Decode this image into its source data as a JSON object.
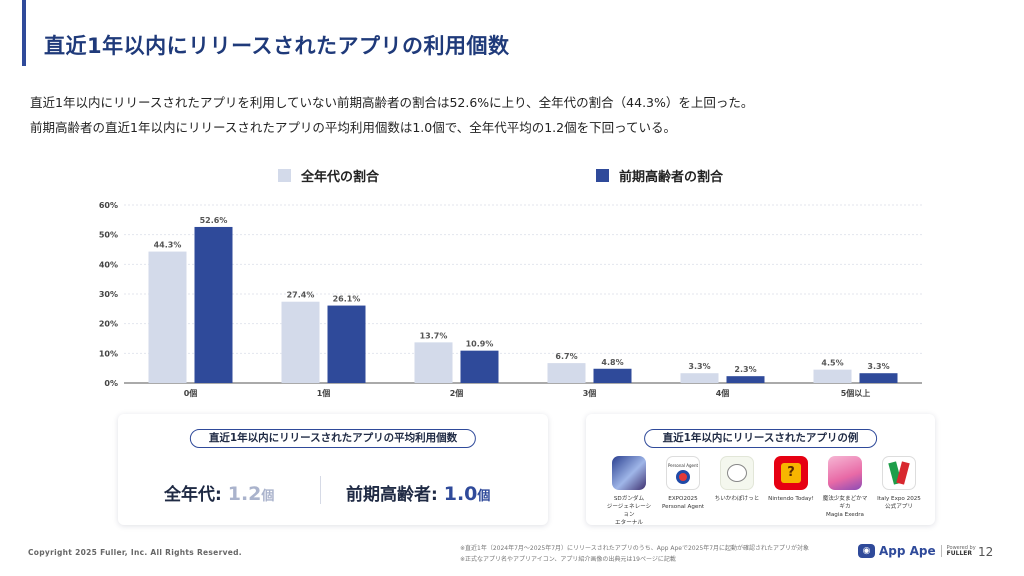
{
  "header": {
    "title": "直近1年以内にリリースされたアプリの利用個数"
  },
  "summary": {
    "line1": "直近1年以内にリリースされたアプリを利用していない前期高齢者の割合は52.6%に上り、全年代の割合（44.3%）を上回った。",
    "line2": "前期高齢者の直近1年以内にリリースされたアプリの平均利用個数は1.0個で、全年代平均の1.2個を下回っている。"
  },
  "legend": {
    "all_label": "全年代の割合",
    "senior_label": "前期高齢者の割合"
  },
  "colors": {
    "all": "#d3daea",
    "senior": "#2f4a9a",
    "accent": "#2f4a9a"
  },
  "chart_data": {
    "type": "bar",
    "categories": [
      "0個",
      "1個",
      "2個",
      "3個",
      "4個",
      "5個以上"
    ],
    "series": [
      {
        "name": "全年代の割合",
        "values": [
          44.3,
          27.4,
          13.7,
          6.7,
          3.3,
          4.5
        ]
      },
      {
        "name": "前期高齢者の割合",
        "values": [
          52.6,
          26.1,
          10.9,
          4.8,
          2.3,
          3.3
        ]
      }
    ],
    "yticks": [
      "0%",
      "10%",
      "20%",
      "30%",
      "40%",
      "50%",
      "60%"
    ],
    "ylim": [
      0,
      60
    ],
    "grid": true
  },
  "average_card": {
    "title": "直近1年以内にリリースされたアプリの平均利用個数",
    "all_label": "全年代: ",
    "all_value": "1.2",
    "senior_label": "前期高齢者: ",
    "senior_value": "1.0",
    "unit": "個"
  },
  "examples_card": {
    "title": "直近1年以内にリリースされたアプリの例",
    "apps": [
      {
        "name": "SDガンダム\nジージェネレーション\nエターナル",
        "icon": "gundam-game-icon"
      },
      {
        "name": "EXPO2025\nPersonal Agent",
        "icon": "expo2025-icon",
        "icon_text": "Personal Agent"
      },
      {
        "name": "ちいかわぽけっと",
        "icon": "chiikawa-icon"
      },
      {
        "name": "Nintendo Today!",
        "icon": "nintendo-today-icon",
        "icon_text": "?"
      },
      {
        "name": "魔法少女まどかマギカ\nMagia Exedra",
        "icon": "madoka-magica-icon"
      },
      {
        "name": "Italy Expo 2025\n公式アプリ",
        "icon": "italy-expo-icon"
      }
    ]
  },
  "footer": {
    "copyright": "Copyright 2025 Fuller, Inc. All Rights Reserved.",
    "note1": "※直近1年（2024年7月～2025年7月）にリリースされたアプリのうち、App Apeで2025年7月に起動が確認されたアプリが対象",
    "note2": "※正式なアプリ名やアプリアイコン、アプリ紹介画像の出典元は19ページに記載",
    "brand_name": "App Ape",
    "brand_by_1": "Powered by",
    "brand_by_2": "FULLER",
    "page_number": "12"
  }
}
